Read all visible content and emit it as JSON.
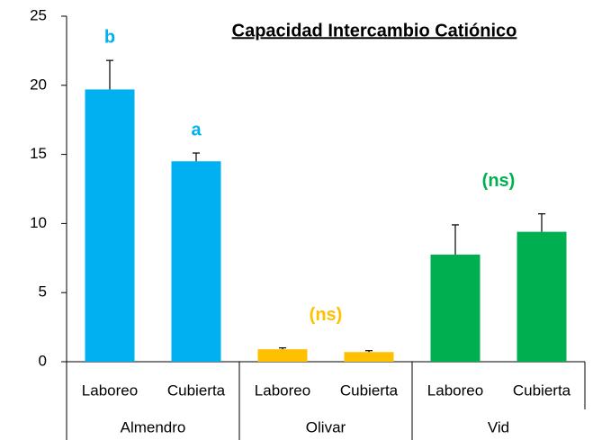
{
  "chart_data": {
    "type": "bar",
    "title": "Capacidad Intercambio Catiónico",
    "ylim": [
      0,
      25
    ],
    "yticks": [
      0,
      5,
      10,
      15,
      20,
      25
    ],
    "groups": [
      {
        "name": "Almendro",
        "categories": [
          "Laboreo",
          "Cubierta"
        ],
        "values": [
          19.7,
          14.5
        ],
        "errors": [
          2.1,
          0.6
        ],
        "color": "#00b0f0",
        "annotations": [
          "b",
          "a"
        ]
      },
      {
        "name": "Olivar",
        "categories": [
          "Laboreo",
          "Cubierta"
        ],
        "values": [
          0.9,
          0.7
        ],
        "errors": [
          0.1,
          0.1
        ],
        "color": "#ffc000",
        "annotations": [
          "(ns)"
        ]
      },
      {
        "name": "Vid",
        "categories": [
          "Laboreo",
          "Cubierta"
        ],
        "values": [
          7.75,
          9.4
        ],
        "errors": [
          2.15,
          1.3
        ],
        "color": "#00b050",
        "annotations": [
          "(ns)"
        ]
      }
    ]
  }
}
